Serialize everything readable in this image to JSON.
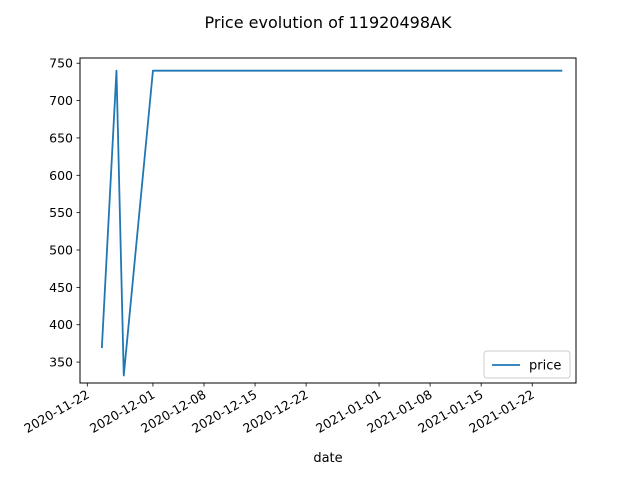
{
  "chart_data": {
    "type": "line",
    "title": "Price evolution of 11920498AK",
    "xlabel": "date",
    "ylabel": "",
    "x_ticks": [
      "2020-11-22",
      "2020-12-01",
      "2020-12-08",
      "2020-12-15",
      "2020-12-22",
      "2021-01-01",
      "2021-01-08",
      "2021-01-15",
      "2021-01-22"
    ],
    "y_ticks": [
      350,
      400,
      450,
      500,
      550,
      600,
      650,
      700,
      750
    ],
    "xlim": [
      "2020-11-21",
      "2021-01-28"
    ],
    "ylim": [
      322,
      757
    ],
    "grid": false,
    "legend_position": "lower-right",
    "series": [
      {
        "name": "price",
        "color": "#1f77b4",
        "x": [
          "2020-11-24",
          "2020-11-26",
          "2020-11-27",
          "2020-12-01",
          "2021-01-26"
        ],
        "values": [
          370,
          740,
          332,
          740,
          740
        ]
      }
    ]
  }
}
